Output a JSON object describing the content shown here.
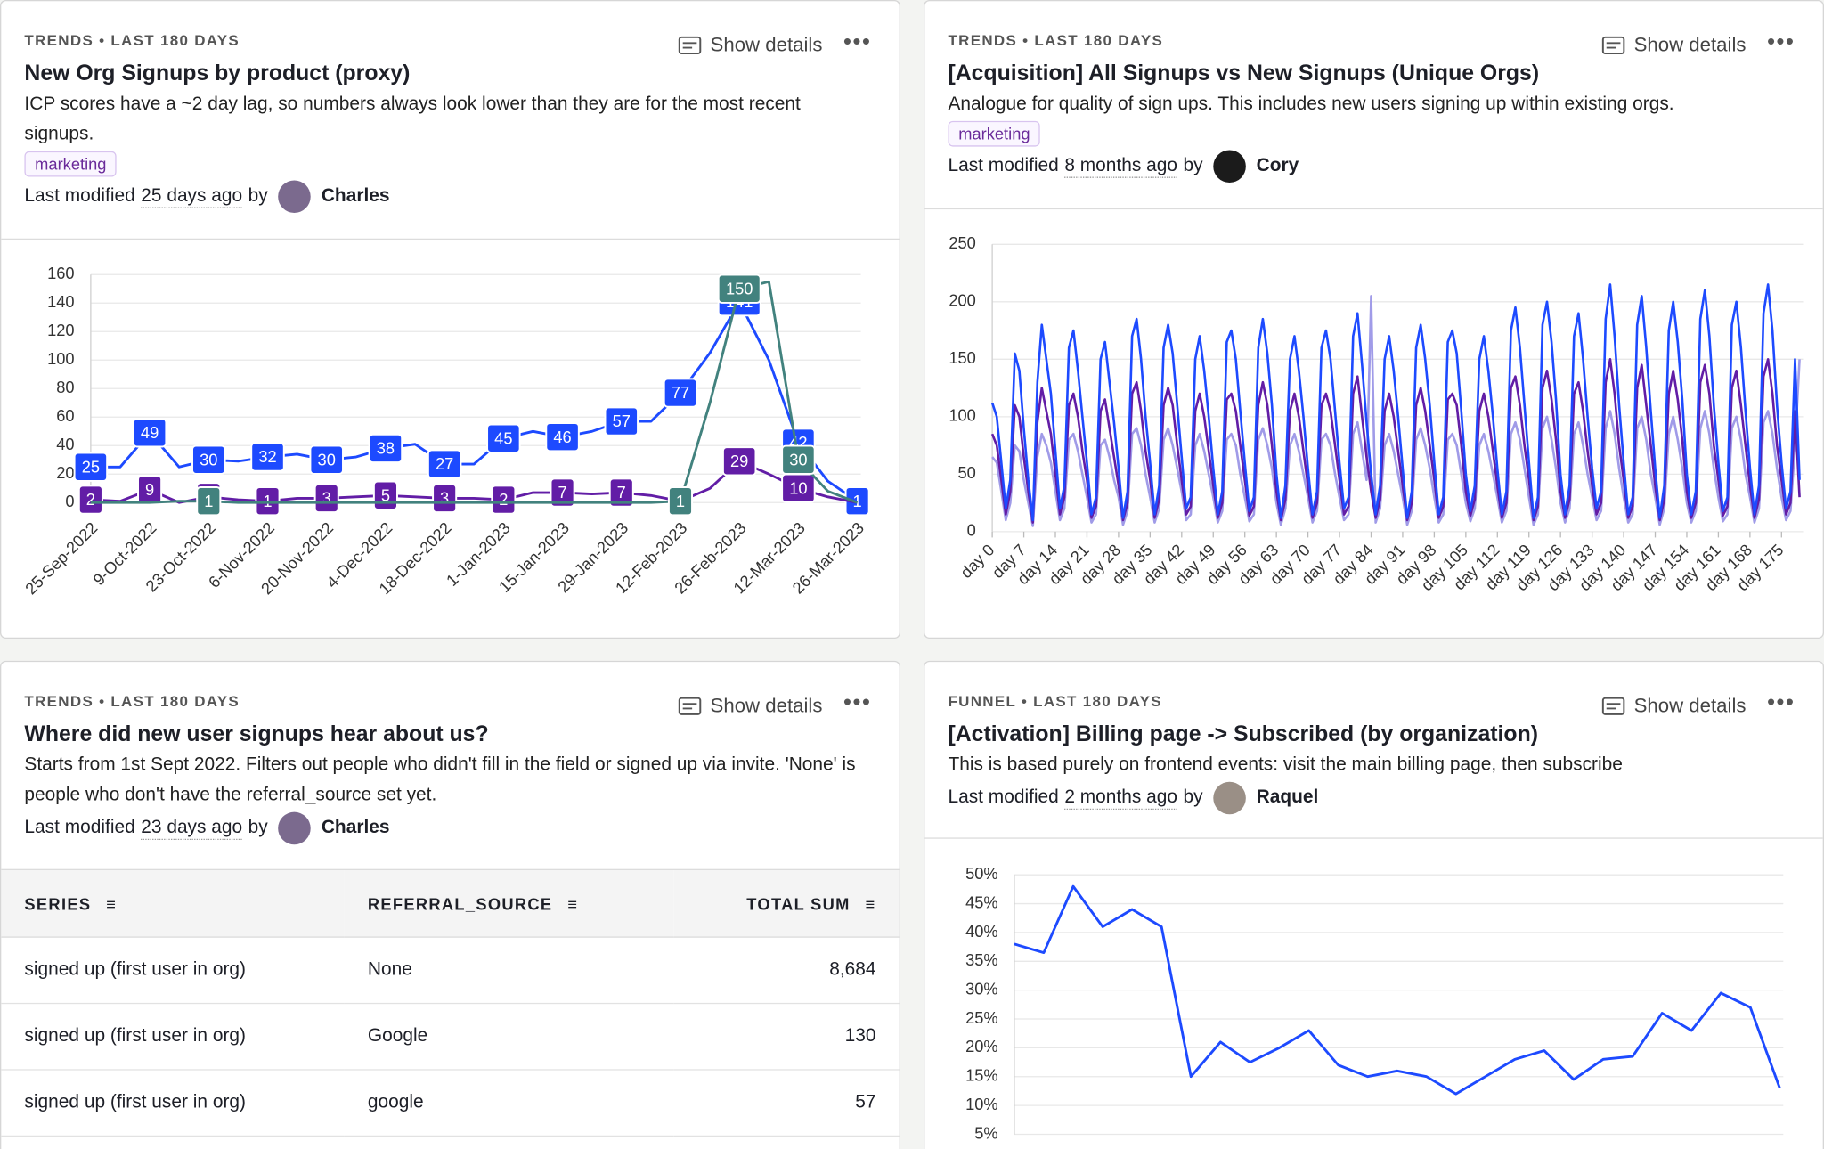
{
  "cards": [
    {
      "eyebrow": "TRENDS • LAST 180 DAYS",
      "show_details": "Show details",
      "title": "New Org Signups by product (proxy)",
      "description": "ICP scores have a ~2 day lag, so numbers always look lower than they are for the most recent signups.",
      "tag": "marketing",
      "modified": {
        "prefix": "Last modified",
        "ago": "25 days ago",
        "by": "by",
        "author": "Charles"
      },
      "chart_data": {
        "type": "line",
        "data_labels": true,
        "categories": [
          "25-Sep-2022",
          null,
          "9-Oct-2022",
          null,
          "23-Oct-2022",
          null,
          "6-Nov-2022",
          null,
          "20-Nov-2022",
          null,
          "4-Dec-2022",
          null,
          "18-Dec-2022",
          null,
          "1-Jan-2023",
          null,
          "15-Jan-2023",
          null,
          "29-Jan-2023",
          null,
          "12-Feb-2023",
          null,
          "26-Feb-2023",
          null,
          "12-Mar-2023",
          null,
          "26-Mar-2023"
        ],
        "series": [
          {
            "color": "#1d4aff",
            "values": [
              25,
              25,
              49,
              25,
              30,
              29,
              32,
              34,
              30,
              32,
              38,
              41,
              27,
              27,
              45,
              50,
              46,
              50,
              57,
              57,
              77,
              105,
              141,
              100,
              42,
              15,
              1
            ]
          },
          {
            "color": "#621da6",
            "values": [
              2,
              1,
              9,
              0,
              4,
              2,
              1,
              3,
              3,
              4,
              5,
              4,
              3,
              3,
              2,
              7,
              7,
              6,
              7,
              5,
              1,
              10,
              29,
              20,
              10,
              4,
              0
            ]
          },
          {
            "color": "#42827e",
            "values": [
              0,
              0,
              0,
              1,
              1,
              0,
              0,
              0,
              0,
              0,
              0,
              0,
              0,
              0,
              0,
              0,
              0,
              0,
              0,
              0,
              1,
              70,
              150,
              155,
              30,
              8,
              0
            ]
          }
        ],
        "ylim": [
          0,
          160
        ],
        "yticks": [
          0,
          20,
          40,
          60,
          80,
          100,
          120,
          140,
          160
        ],
        "grid": true
      }
    },
    {
      "eyebrow": "TRENDS • LAST 180 DAYS",
      "show_details": "Show details",
      "title": "[Acquisition] All Signups vs New Signups (Unique Orgs)",
      "description": "Analogue for quality of sign ups. This includes new users signing up within existing orgs.",
      "tag": "marketing",
      "modified": {
        "prefix": "Last modified",
        "ago": "8 months ago",
        "by": "by",
        "author": "Cory"
      },
      "chart_data": {
        "type": "line",
        "xlim": [
          0,
          179
        ],
        "xticks": [
          {
            "value": 0,
            "label": "day 0"
          },
          {
            "value": 7,
            "label": "day 7"
          },
          {
            "value": 14,
            "label": "day 14"
          },
          {
            "value": 21,
            "label": "day 21"
          },
          {
            "value": 28,
            "label": "day 28"
          },
          {
            "value": 35,
            "label": "day 35"
          },
          {
            "value": 42,
            "label": "day 42"
          },
          {
            "value": 49,
            "label": "day 49"
          },
          {
            "value": 56,
            "label": "day 56"
          },
          {
            "value": 63,
            "label": "day 63"
          },
          {
            "value": 70,
            "label": "day 70"
          },
          {
            "value": 77,
            "label": "day 77"
          },
          {
            "value": 84,
            "label": "day 84"
          },
          {
            "value": 91,
            "label": "day 91"
          },
          {
            "value": 98,
            "label": "day 98"
          },
          {
            "value": 105,
            "label": "day 105"
          },
          {
            "value": 112,
            "label": "day 112"
          },
          {
            "value": 119,
            "label": "day 119"
          },
          {
            "value": 126,
            "label": "day 126"
          },
          {
            "value": 133,
            "label": "day 133"
          },
          {
            "value": 140,
            "label": "day 140"
          },
          {
            "value": 147,
            "label": "day 147"
          },
          {
            "value": 154,
            "label": "day 154"
          },
          {
            "value": 161,
            "label": "day 161"
          },
          {
            "value": 168,
            "label": "day 168"
          },
          {
            "value": 175,
            "label": "day 175"
          }
        ],
        "series": [
          {
            "color": "#a09be8",
            "values": [
              65,
              60,
              35,
              10,
              25,
              75,
              70,
              45,
              25,
              5,
              65,
              85,
              75,
              60,
              35,
              10,
              20,
              80,
              85,
              70,
              50,
              30,
              8,
              15,
              75,
              80,
              65,
              45,
              30,
              6,
              18,
              85,
              90,
              75,
              50,
              30,
              8,
              20,
              80,
              90,
              75,
              55,
              35,
              10,
              15,
              75,
              85,
              70,
              50,
              30,
              8,
              18,
              80,
              85,
              75,
              50,
              30,
              9,
              15,
              80,
              90,
              75,
              55,
              25,
              6,
              20,
              75,
              85,
              70,
              50,
              30,
              8,
              18,
              80,
              85,
              75,
              50,
              30,
              10,
              15,
              85,
              95,
              70,
              45,
              205,
              8,
              20,
              75,
              85,
              70,
              50,
              30,
              6,
              18,
              80,
              90,
              75,
              55,
              30,
              8,
              15,
              80,
              85,
              75,
              50,
              25,
              9,
              20,
              75,
              85,
              70,
              50,
              30,
              8,
              18,
              85,
              95,
              80,
              55,
              30,
              6,
              15,
              90,
              100,
              80,
              55,
              25,
              8,
              20,
              85,
              95,
              75,
              50,
              30,
              10,
              18,
              90,
              105,
              85,
              55,
              30,
              8,
              15,
              90,
              100,
              80,
              50,
              30,
              6,
              20,
              85,
              100,
              80,
              55,
              25,
              8,
              18,
              90,
              105,
              85,
              55,
              30,
              9,
              15,
              90,
              100,
              80,
              50,
              30,
              8,
              20,
              95,
              105,
              85,
              55,
              30,
              10,
              18,
              75,
              150
            ]
          },
          {
            "color": "#621da6",
            "values": [
              85,
              75,
              45,
              15,
              35,
              110,
              100,
              65,
              35,
              8,
              95,
              125,
              105,
              85,
              50,
              15,
              30,
              110,
              120,
              100,
              70,
              45,
              12,
              22,
              105,
              115,
              90,
              65,
              40,
              10,
              25,
              120,
              130,
              105,
              70,
              45,
              12,
              28,
              110,
              125,
              110,
              75,
              45,
              15,
              22,
              105,
              120,
              100,
              70,
              40,
              12,
              25,
              115,
              120,
              105,
              75,
              45,
              14,
              22,
              110,
              130,
              110,
              75,
              35,
              10,
              28,
              105,
              120,
              100,
              70,
              40,
              12,
              25,
              110,
              120,
              105,
              75,
              45,
              15,
              22,
              120,
              135,
              100,
              65,
              35,
              12,
              28,
              105,
              120,
              100,
              70,
              40,
              10,
              25,
              110,
              125,
              105,
              75,
              45,
              12,
              22,
              115,
              120,
              110,
              75,
              35,
              14,
              28,
              105,
              120,
              100,
              70,
              40,
              12,
              25,
              125,
              135,
              110,
              75,
              45,
              10,
              22,
              125,
              140,
              115,
              80,
              35,
              12,
              28,
              120,
              130,
              105,
              70,
              40,
              15,
              25,
              130,
              150,
              120,
              75,
              45,
              12,
              22,
              125,
              145,
              110,
              75,
              40,
              10,
              28,
              120,
              140,
              115,
              80,
              35,
              12,
              25,
              130,
              145,
              120,
              75,
              45,
              14,
              22,
              125,
              140,
              110,
              75,
              40,
              12,
              28,
              135,
              150,
              120,
              75,
              45,
              15,
              25,
              105,
              30
            ]
          },
          {
            "color": "#1d4aff",
            "values": [
              112,
              100,
              60,
              20,
              45,
              155,
              140,
              90,
              45,
              10,
              130,
              180,
              150,
              120,
              70,
              20,
              40,
              160,
              175,
              140,
              100,
              60,
              15,
              30,
              150,
              165,
              130,
              95,
              55,
              12,
              35,
              170,
              185,
              150,
              100,
              60,
              15,
              40,
              160,
              180,
              155,
              110,
              65,
              20,
              30,
              150,
              170,
              140,
              100,
              55,
              15,
              35,
              165,
              175,
              150,
              105,
              60,
              18,
              30,
              160,
              185,
              155,
              110,
              50,
              12,
              40,
              150,
              170,
              140,
              100,
              55,
              15,
              35,
              160,
              175,
              150,
              105,
              60,
              20,
              30,
              170,
              190,
              145,
              95,
              50,
              15,
              40,
              150,
              170,
              140,
              100,
              55,
              12,
              35,
              160,
              180,
              150,
              110,
              60,
              15,
              30,
              165,
              175,
              155,
              105,
              50,
              18,
              40,
              150,
              170,
              140,
              100,
              55,
              15,
              35,
              175,
              195,
              160,
              110,
              60,
              12,
              30,
              180,
              200,
              165,
              115,
              50,
              15,
              40,
              170,
              190,
              150,
              100,
              55,
              20,
              35,
              185,
              215,
              170,
              110,
              60,
              15,
              30,
              180,
              205,
              160,
              105,
              55,
              12,
              40,
              175,
              200,
              165,
              115,
              50,
              15,
              35,
              185,
              210,
              170,
              110,
              60,
              18,
              30,
              180,
              200,
              160,
              105,
              55,
              15,
              40,
              190,
              215,
              175,
              110,
              60,
              20,
              35,
              150,
              45
            ]
          }
        ],
        "ylim": [
          0,
          250
        ],
        "yticks": [
          0,
          50,
          100,
          150,
          200,
          250
        ],
        "grid": true
      }
    },
    {
      "eyebrow": "TRENDS • LAST 180 DAYS",
      "show_details": "Show details",
      "title": "Where did new user signups hear about us?",
      "description": "Starts from 1st Sept 2022. Filters out people who didn't fill in the field or signed up via invite. 'None' is people who don't have the referral_source set yet.",
      "modified": {
        "prefix": "Last modified",
        "ago": "23 days ago",
        "by": "by",
        "author": "Charles"
      },
      "table": {
        "headers": [
          "SERIES",
          "REFERRAL_SOURCE",
          "TOTAL SUM"
        ],
        "rows": [
          [
            "signed up (first user in org)",
            "None",
            "8,684"
          ],
          [
            "signed up (first user in org)",
            "Google",
            "130"
          ],
          [
            "signed up (first user in org)",
            "google",
            "57"
          ]
        ]
      }
    },
    {
      "eyebrow": "FUNNEL • LAST 180 DAYS",
      "show_details": "Show details",
      "title": "[Activation] Billing page -> Subscribed (by organization)",
      "description": "This is based purely on frontend events: visit the main billing page, then subscribe",
      "modified": {
        "prefix": "Last modified",
        "ago": "2 months ago",
        "by": "by",
        "author": "Raquel"
      },
      "chart_data": {
        "type": "line",
        "series": [
          {
            "color": "#1d4aff",
            "values": [
              38,
              36.5,
              48,
              41,
              44,
              41,
              15,
              21,
              17.5,
              20,
              23,
              17,
              15,
              16,
              15,
              12,
              15,
              18,
              19.5,
              14.5,
              18,
              18.5,
              26,
              23,
              29.5,
              27,
              13
            ]
          }
        ],
        "ylim": [
          5,
          50
        ],
        "yticks": [
          {
            "value": 5,
            "label": "5%"
          },
          {
            "value": 10,
            "label": "10%"
          },
          {
            "value": 15,
            "label": "15%"
          },
          {
            "value": 20,
            "label": "20%"
          },
          {
            "value": 25,
            "label": "25%"
          },
          {
            "value": 30,
            "label": "30%"
          },
          {
            "value": 35,
            "label": "35%"
          },
          {
            "value": 40,
            "label": "40%"
          },
          {
            "value": 45,
            "label": "45%"
          },
          {
            "value": 50,
            "label": "50%"
          }
        ],
        "grid": true
      }
    }
  ]
}
